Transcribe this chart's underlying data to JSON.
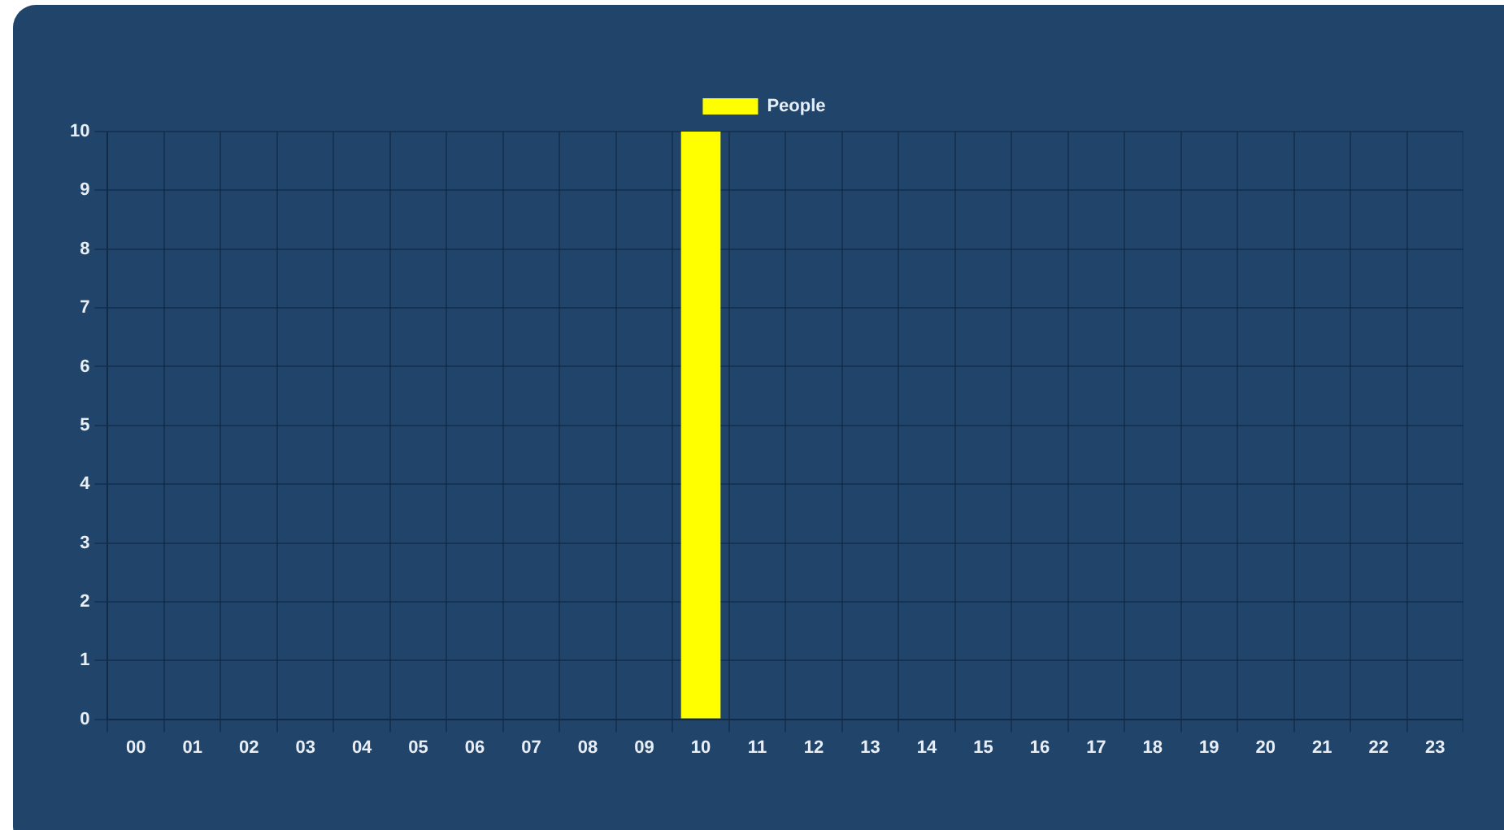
{
  "chart_data": {
    "type": "bar",
    "categories": [
      "00",
      "01",
      "02",
      "03",
      "04",
      "05",
      "06",
      "07",
      "08",
      "09",
      "10",
      "11",
      "12",
      "13",
      "14",
      "15",
      "16",
      "17",
      "18",
      "19",
      "20",
      "21",
      "22",
      "23"
    ],
    "series": [
      {
        "name": "People",
        "color": "#ffff00",
        "values": [
          0,
          0,
          0,
          0,
          0,
          0,
          0,
          0,
          0,
          0,
          10,
          0,
          0,
          0,
          0,
          0,
          0,
          0,
          0,
          0,
          0,
          0,
          0,
          0
        ]
      }
    ],
    "ylim": [
      0,
      10
    ],
    "yticks": [
      0,
      1,
      2,
      3,
      4,
      5,
      6,
      7,
      8,
      9,
      10
    ],
    "grid": true,
    "legend": "top"
  }
}
